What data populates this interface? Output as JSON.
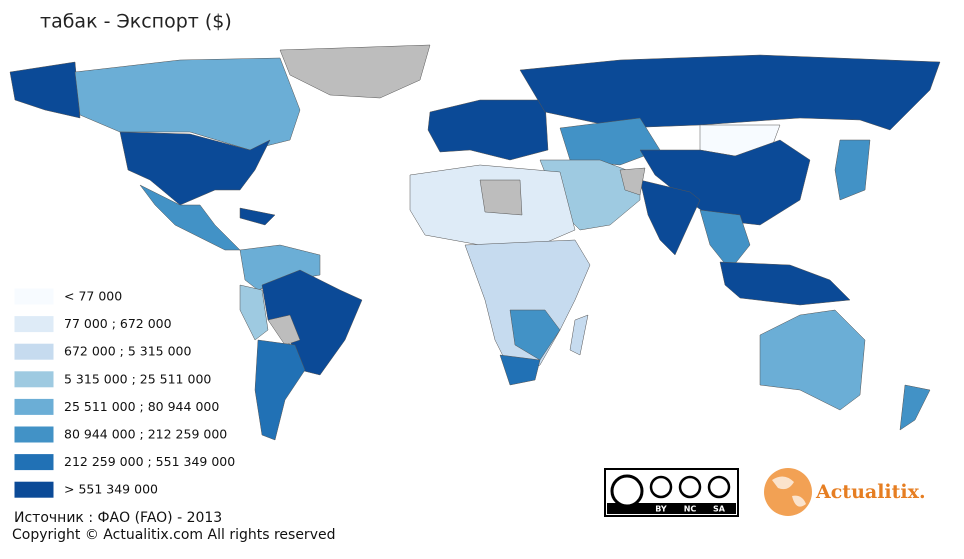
{
  "header": {
    "title": "табак - Экспорт ($)"
  },
  "legend": [
    {
      "label": "< 77 000",
      "color": "#f7fbff"
    },
    {
      "label": "77 000 ; 672 000",
      "color": "#deebf7"
    },
    {
      "label": "672 000 ; 5 315 000",
      "color": "#c6dbef"
    },
    {
      "label": "5 315 000 ; 25 511 000",
      "color": "#9ecae1"
    },
    {
      "label": "25 511 000 ; 80 944 000",
      "color": "#6baed6"
    },
    {
      "label": "80 944 000 ; 212 259 000",
      "color": "#4292c6"
    },
    {
      "label": "212 259 000 ; 551 349 000",
      "color": "#2171b5"
    },
    {
      "label": "> 551 349 000",
      "color": "#0b4a97"
    }
  ],
  "footer": {
    "source": "Источник : ФАО (FAO) - 2013",
    "copyright": "Copyright © Actualitix.com All rights reserved"
  },
  "badge": {
    "by": "BY",
    "nc": "NC",
    "sa": "SA"
  },
  "logo": {
    "text": "Actualitix."
  }
}
